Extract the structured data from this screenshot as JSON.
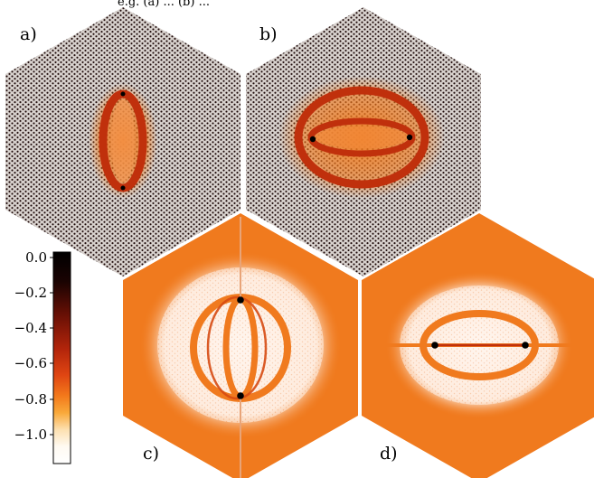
{
  "header": {
    "caption_fragment": "e.g. (a) ... (b) ..."
  },
  "panels": [
    {
      "id": "a",
      "label": "a)"
    },
    {
      "id": "b",
      "label": "b)"
    },
    {
      "id": "c",
      "label": "c)"
    },
    {
      "id": "d",
      "label": "d)"
    }
  ],
  "colorbar": {
    "ticks": [
      "0.0",
      "−0.2",
      "−0.4",
      "−0.6",
      "−0.8",
      "−1.0"
    ],
    "colormap": [
      "#000000",
      "#3a0a02",
      "#7a1406",
      "#b9290c",
      "#e44a12",
      "#f5811c",
      "#fbbd4b",
      "#ffe8c8",
      "#ffffff"
    ]
  },
  "colors": {
    "lattice_dot": "#1a0505",
    "lattice_bg_ab": "#c9c2bd",
    "field_orange": "#f07a1e",
    "ring_red": "#c0300c",
    "defect": "#000000",
    "pale": "#fff4ec"
  }
}
